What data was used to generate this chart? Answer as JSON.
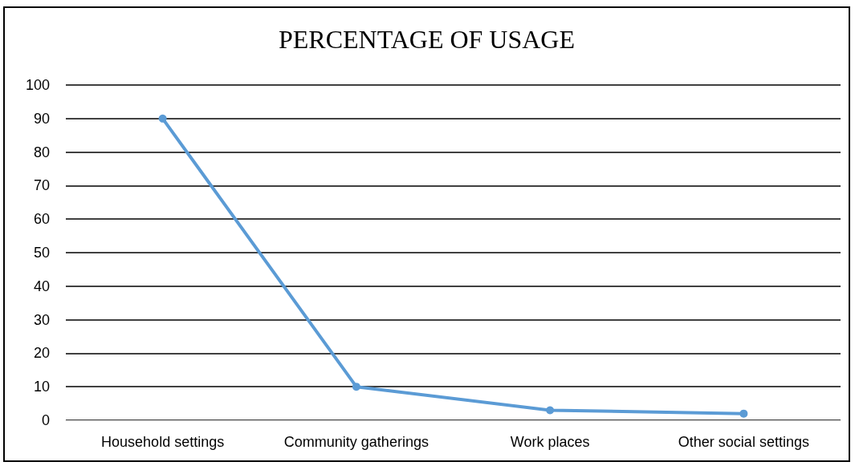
{
  "chart_data": {
    "type": "line",
    "title": "PERCENTAGE OF USAGE",
    "categories": [
      "Household settings",
      "Community gatherings",
      "Work places",
      "Other social settings"
    ],
    "series": [
      {
        "color": "#5b9bd5",
        "values": [
          90,
          10,
          3,
          2
        ]
      }
    ],
    "ylim": [
      0,
      100
    ],
    "yticks": [
      0,
      10,
      20,
      30,
      40,
      50,
      60,
      70,
      80,
      90,
      100
    ],
    "grid": "y",
    "marker": "circle",
    "line_style": "solid"
  }
}
